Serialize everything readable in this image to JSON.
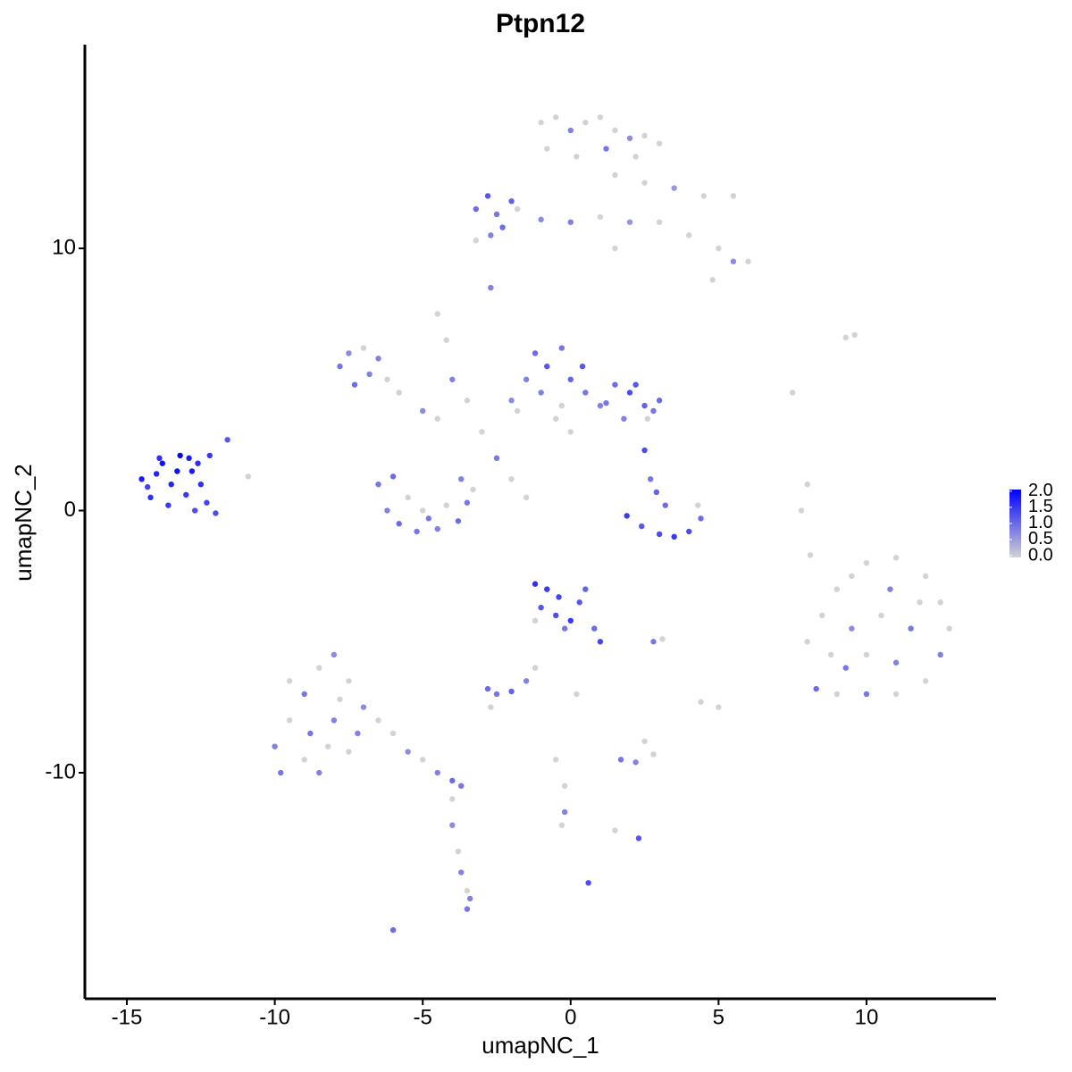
{
  "chart_data": {
    "type": "scatter",
    "title": "Ptpn12",
    "x_label": "umapNC_1",
    "y_label": "umapNC_2",
    "xlim": [
      -16.42,
      14.38
    ],
    "ylim": [
      -18.62,
      17.77
    ],
    "xticks": [
      -15,
      -10,
      -5,
      0,
      5,
      10
    ],
    "yticks": [
      -10,
      0,
      10
    ],
    "colors": [
      "#d3d3d3",
      "#0000ff"
    ],
    "clim": [
      0,
      2.05
    ],
    "cticks": [
      {
        "value": 2.0,
        "label": "2.0"
      },
      {
        "value": 1.5,
        "label": "1.5"
      },
      {
        "value": 1.0,
        "label": "1.0"
      },
      {
        "value": 0.5,
        "label": "0.5"
      },
      {
        "value": 0,
        "label": "0.0"
      }
    ],
    "points": [
      [
        -14.5,
        1.2,
        1.8
      ],
      [
        -14.2,
        0.5,
        1.6
      ],
      [
        -13.8,
        1.8,
        1.9
      ],
      [
        -13.5,
        1.0,
        1.7
      ],
      [
        -13.2,
        2.1,
        2.0
      ],
      [
        -13.0,
        0.6,
        1.5
      ],
      [
        -12.8,
        1.5,
        1.8
      ],
      [
        -12.5,
        1.0,
        1.6
      ],
      [
        -12.3,
        0.3,
        1.4
      ],
      [
        -12.0,
        -0.1,
        1.3
      ],
      [
        -14.0,
        1.4,
        1.7
      ],
      [
        -13.6,
        0.2,
        1.5
      ],
      [
        -13.3,
        1.5,
        1.9
      ],
      [
        -12.9,
        2.0,
        1.8
      ],
      [
        -12.6,
        1.8,
        1.6
      ],
      [
        -14.3,
        0.9,
        1.4
      ],
      [
        -11.6,
        2.7,
        1.2
      ],
      [
        -12.2,
        2.1,
        1.5
      ],
      [
        -13.9,
        2.0,
        1.6
      ],
      [
        -12.7,
        0.0,
        1.3
      ],
      [
        -1.0,
        14.8,
        0
      ],
      [
        -0.5,
        15.0,
        0
      ],
      [
        0,
        14.5,
        0.8
      ],
      [
        0.5,
        14.8,
        0
      ],
      [
        1,
        15,
        0
      ],
      [
        1.5,
        14.5,
        0
      ],
      [
        2,
        14.2,
        0.7
      ],
      [
        2.5,
        14.3,
        0
      ],
      [
        3,
        14,
        0
      ],
      [
        -0.8,
        13.8,
        0
      ],
      [
        0.2,
        13.5,
        0
      ],
      [
        1.2,
        13.8,
        0.9
      ],
      [
        2.2,
        13.5,
        0
      ],
      [
        1.5,
        12.8,
        0
      ],
      [
        2.5,
        12.5,
        0
      ],
      [
        3.5,
        12.3,
        0.6
      ],
      [
        4.5,
        12,
        0
      ],
      [
        5.5,
        12,
        0
      ],
      [
        3,
        11,
        0
      ],
      [
        4,
        10.5,
        0
      ],
      [
        5,
        10,
        0
      ],
      [
        5.5,
        9.5,
        0.7
      ],
      [
        6,
        9.5,
        0
      ],
      [
        4.8,
        8.8,
        0
      ],
      [
        0,
        11,
        0.8
      ],
      [
        1,
        11.2,
        0
      ],
      [
        2,
        11,
        0.6
      ],
      [
        -1,
        11.1,
        0.7
      ],
      [
        1.5,
        10,
        0
      ],
      [
        -3.2,
        11.5,
        1.0
      ],
      [
        -2.8,
        12,
        1.2
      ],
      [
        -2.5,
        11.3,
        0.9
      ],
      [
        -2,
        11.8,
        1.1
      ],
      [
        -2.3,
        10.8,
        1.0
      ],
      [
        -1.8,
        11.5,
        0
      ],
      [
        -2.7,
        10.5,
        0.8
      ],
      [
        -2.7,
        8.5,
        0.8
      ],
      [
        -7.8,
        5.5,
        0.9
      ],
      [
        -7.5,
        6,
        0.7
      ],
      [
        -7,
        6.2,
        0
      ],
      [
        -6.5,
        5.8,
        0.8
      ],
      [
        -6.2,
        5,
        0
      ],
      [
        -7.3,
        4.8,
        1.0
      ],
      [
        -6.8,
        5.2,
        0.8
      ],
      [
        -5.8,
        4.5,
        0
      ],
      [
        -5,
        3.8,
        0.7
      ],
      [
        -4.5,
        3.5,
        0
      ],
      [
        -4.5,
        7.5,
        0
      ],
      [
        -4.2,
        6.5,
        0
      ],
      [
        -4,
        5,
        0.8
      ],
      [
        -3.5,
        4.2,
        0
      ],
      [
        -3,
        3,
        0
      ],
      [
        -2.5,
        2,
        0.9
      ],
      [
        -2,
        1.2,
        0
      ],
      [
        -1.5,
        0.5,
        0
      ],
      [
        -1.2,
        6,
        1.0
      ],
      [
        -0.8,
        5.5,
        1.2
      ],
      [
        -0.3,
        6.2,
        0.9
      ],
      [
        0,
        5,
        1.1
      ],
      [
        -1,
        4.5,
        0.8
      ],
      [
        -0.5,
        3.5,
        0
      ],
      [
        0.5,
        4.5,
        0.9
      ],
      [
        -1.8,
        3.8,
        0
      ],
      [
        -2,
        4.2,
        0.7
      ],
      [
        1,
        4,
        0.8
      ],
      [
        0,
        3,
        0
      ],
      [
        -1.5,
        5,
        0.8
      ],
      [
        0.4,
        5.5,
        1.2
      ],
      [
        -0.3,
        4.0,
        0
      ],
      [
        1.5,
        4.8,
        1.0
      ],
      [
        2,
        4.5,
        1.3
      ],
      [
        2.5,
        4,
        1.1
      ],
      [
        2.8,
        3.8,
        0.9
      ],
      [
        1.8,
        3.5,
        0.8
      ],
      [
        2.2,
        4.8,
        1.2
      ],
      [
        1.2,
        4.1,
        0.9
      ],
      [
        2.6,
        3.5,
        0
      ],
      [
        3,
        4.2,
        1.0
      ],
      [
        2.5,
        2.3,
        1.3
      ],
      [
        -6.5,
        1,
        0.9
      ],
      [
        -6.2,
        0,
        0.8
      ],
      [
        -5.8,
        -0.5,
        1.0
      ],
      [
        -5.2,
        -0.8,
        0.9
      ],
      [
        -4.5,
        -0.7,
        0.8
      ],
      [
        -3.8,
        -0.4,
        1.0
      ],
      [
        -3.5,
        0.3,
        0.9
      ],
      [
        -3.7,
        1.2,
        0.8
      ],
      [
        -5,
        0,
        0
      ],
      [
        -4.2,
        0.2,
        0
      ],
      [
        -6,
        1.3,
        1.0
      ],
      [
        -4.8,
        -0.3,
        0.9
      ],
      [
        -5.5,
        0.5,
        0
      ],
      [
        -3.3,
        0.8,
        0
      ],
      [
        1.9,
        -0.2,
        1.5
      ],
      [
        2.4,
        -0.6,
        1.2
      ],
      [
        3,
        -0.9,
        1.3
      ],
      [
        3.5,
        -1.0,
        1.5
      ],
      [
        4,
        -0.8,
        1.3
      ],
      [
        4.4,
        -0.3,
        1.0
      ],
      [
        2.9,
        0.7,
        1.1
      ],
      [
        3.2,
        0.2,
        1.0
      ],
      [
        2.7,
        1.2,
        0.9
      ],
      [
        4.3,
        0.2,
        0
      ],
      [
        -1.2,
        -2.8,
        1.6
      ],
      [
        -0.8,
        -3,
        1.5
      ],
      [
        -0.4,
        -3.3,
        1.4
      ],
      [
        -1,
        -3.7,
        1.2
      ],
      [
        -0.5,
        -4,
        1.3
      ],
      [
        0,
        -4.2,
        1.5
      ],
      [
        0.3,
        -3.5,
        1.2
      ],
      [
        0.8,
        -4.5,
        1.0
      ],
      [
        1,
        -5,
        1.4
      ],
      [
        -1.2,
        -4.2,
        0
      ],
      [
        0.5,
        -3,
        1.1
      ],
      [
        -0.2,
        -4.5,
        0.9
      ],
      [
        -10,
        -9,
        0.8
      ],
      [
        -9.5,
        -8,
        0
      ],
      [
        -9,
        -7,
        0.9
      ],
      [
        -8.5,
        -6,
        0
      ],
      [
        -8,
        -5.5,
        0.7
      ],
      [
        -7.5,
        -6.5,
        0
      ],
      [
        -8,
        -8,
        0.8
      ],
      [
        -9,
        -9.5,
        0
      ],
      [
        -8.5,
        -10,
        0.8
      ],
      [
        -7.5,
        -9.2,
        0
      ],
      [
        -7,
        -7.5,
        0.7
      ],
      [
        -9.5,
        -6.5,
        0
      ],
      [
        -8.8,
        -8.5,
        0.9
      ],
      [
        -7.8,
        -7.2,
        0
      ],
      [
        -9.8,
        -10,
        0.9
      ],
      [
        -8.2,
        -9,
        0
      ],
      [
        -7.2,
        -8.5,
        0.8
      ],
      [
        -6.5,
        -8,
        0
      ],
      [
        -6,
        -8.5,
        0
      ],
      [
        -5.5,
        -9.2,
        0.7
      ],
      [
        -5,
        -9.5,
        0
      ],
      [
        -4.5,
        -10,
        0.8
      ],
      [
        -4,
        -10.3,
        1.0
      ],
      [
        -3.7,
        -10.5,
        0.9
      ],
      [
        -4,
        -11,
        0
      ],
      [
        -4,
        -12,
        0.7
      ],
      [
        -3.8,
        -13,
        0
      ],
      [
        -3.7,
        -13.8,
        0.8
      ],
      [
        -3.5,
        -14.5,
        0
      ],
      [
        -3.5,
        -15.2,
        0.9
      ],
      [
        -3.4,
        -14.8,
        0.8
      ],
      [
        -6,
        -16,
        1.0
      ],
      [
        -2.8,
        -6.8,
        1.0
      ],
      [
        -2.5,
        -7,
        0.9
      ],
      [
        -2,
        -6.9,
        1.1
      ],
      [
        -2.7,
        -7.5,
        0
      ],
      [
        -1.2,
        -6,
        0
      ],
      [
        -1.5,
        -6.5,
        0.8
      ],
      [
        -0.5,
        -9.5,
        0
      ],
      [
        -0.2,
        -10.5,
        0
      ],
      [
        -0.2,
        -11.5,
        0.8
      ],
      [
        -0.3,
        -12,
        0
      ],
      [
        0.6,
        -14.2,
        1.3
      ],
      [
        1.7,
        -9.5,
        0.9
      ],
      [
        2.2,
        -9.6,
        0.8
      ],
      [
        2.8,
        -9.3,
        0
      ],
      [
        2.3,
        -12.5,
        1.2
      ],
      [
        1.5,
        -12.2,
        0
      ],
      [
        2.5,
        -8.8,
        0
      ],
      [
        2.8,
        -5,
        0.9
      ],
      [
        3.1,
        -4.9,
        0
      ],
      [
        0.2,
        -7,
        0
      ],
      [
        5,
        -7.5,
        0
      ],
      [
        4.4,
        -7.3,
        0
      ],
      [
        8,
        -5,
        0
      ],
      [
        8.5,
        -4,
        0
      ],
      [
        9,
        -3,
        0
      ],
      [
        9.5,
        -2.5,
        0
      ],
      [
        10,
        -2,
        0
      ],
      [
        11,
        -1.8,
        0
      ],
      [
        12,
        -2.5,
        0
      ],
      [
        12.5,
        -3.5,
        0
      ],
      [
        12.8,
        -4.5,
        0
      ],
      [
        12.5,
        -5.5,
        0.8
      ],
      [
        12,
        -6.5,
        0
      ],
      [
        11,
        -7,
        0
      ],
      [
        10,
        -7,
        0.9
      ],
      [
        9,
        -7,
        0
      ],
      [
        8.3,
        -6.8,
        1.0
      ],
      [
        8.8,
        -5.5,
        0
      ],
      [
        9.5,
        -4.5,
        0.7
      ],
      [
        10.5,
        -4,
        0
      ],
      [
        11.5,
        -4.5,
        0.9
      ],
      [
        10,
        -5.5,
        0
      ],
      [
        11,
        -5.8,
        0.8
      ],
      [
        9.3,
        -6,
        0.9
      ],
      [
        10.8,
        -3,
        0.8
      ],
      [
        11.8,
        -3.5,
        0
      ],
      [
        9.3,
        6.6,
        0
      ],
      [
        9.6,
        6.7,
        0
      ],
      [
        7.5,
        4.5,
        0
      ],
      [
        8,
        1,
        0
      ],
      [
        7.8,
        0,
        0
      ],
      [
        8.1,
        -1.7,
        0
      ],
      [
        -10.9,
        1.3,
        0
      ],
      [
        -3.2,
        10.3,
        0
      ]
    ]
  }
}
